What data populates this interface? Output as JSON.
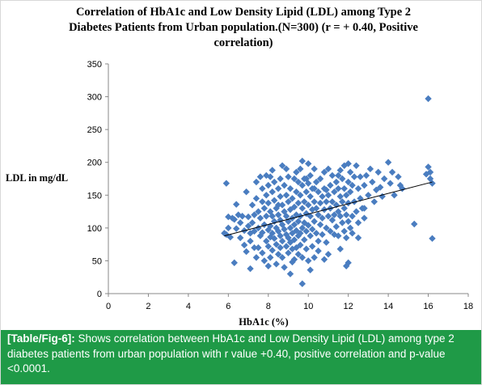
{
  "chart_data": {
    "type": "scatter",
    "title_lines": [
      "Correlation of HbA1c and Low Density Lipid (LDL) among Type 2",
      "Diabetes Patients from Urban population.(N=300) (r = + 0.40, Positive",
      "correlation)"
    ],
    "xlabel": "HbA1c (%)",
    "ylabel": "LDL in mg/dL",
    "xlim": [
      0,
      18
    ],
    "ylim": [
      0,
      350
    ],
    "xticks": [
      "0",
      "2",
      "4",
      "6",
      "8",
      "10",
      "12",
      "14",
      "16",
      "18"
    ],
    "yticks": [
      "0",
      "50",
      "100",
      "150",
      "200",
      "250",
      "300",
      "350"
    ],
    "grid": false,
    "marker": "diamond",
    "marker_color": "#4a7dc0",
    "trendline": {
      "x": [
        5.8,
        16.2
      ],
      "y": [
        88,
        170
      ],
      "color": "#000000"
    },
    "points": [
      [
        5.8,
        92
      ],
      [
        5.9,
        90
      ],
      [
        5.9,
        168
      ],
      [
        6.0,
        117
      ],
      [
        6.0,
        100
      ],
      [
        6.1,
        86
      ],
      [
        6.2,
        115
      ],
      [
        6.3,
        113
      ],
      [
        6.3,
        47
      ],
      [
        6.4,
        136
      ],
      [
        6.4,
        99
      ],
      [
        6.5,
        120
      ],
      [
        6.6,
        108
      ],
      [
        6.6,
        85
      ],
      [
        6.7,
        118
      ],
      [
        6.8,
        74
      ],
      [
        6.8,
        96
      ],
      [
        6.9,
        155
      ],
      [
        6.9,
        64
      ],
      [
        7.0,
        117
      ],
      [
        7.0,
        103
      ],
      [
        7.1,
        92
      ],
      [
        7.1,
        80
      ],
      [
        7.1,
        38
      ],
      [
        7.2,
        135
      ],
      [
        7.2,
        108
      ],
      [
        7.3,
        120
      ],
      [
        7.3,
        95
      ],
      [
        7.4,
        170
      ],
      [
        7.4,
        145
      ],
      [
        7.4,
        55
      ],
      [
        7.5,
        125
      ],
      [
        7.5,
        100
      ],
      [
        7.5,
        70
      ],
      [
        7.6,
        178
      ],
      [
        7.6,
        115
      ],
      [
        7.6,
        88
      ],
      [
        7.7,
        160
      ],
      [
        7.7,
        140
      ],
      [
        7.7,
        93
      ],
      [
        7.7,
        62
      ],
      [
        7.8,
        130
      ],
      [
        7.8,
        105
      ],
      [
        7.8,
        50
      ],
      [
        7.9,
        180
      ],
      [
        7.9,
        150
      ],
      [
        7.9,
        118
      ],
      [
        7.9,
        80
      ],
      [
        8.0,
        165
      ],
      [
        8.0,
        138
      ],
      [
        8.0,
        97
      ],
      [
        8.0,
        72
      ],
      [
        8.1,
        178
      ],
      [
        8.1,
        125
      ],
      [
        8.1,
        103
      ],
      [
        8.1,
        86
      ],
      [
        8.1,
        55
      ],
      [
        8.2,
        155
      ],
      [
        8.2,
        118
      ],
      [
        8.2,
        92
      ],
      [
        8.2,
        66
      ],
      [
        8.3,
        170
      ],
      [
        8.3,
        142
      ],
      [
        8.3,
        110
      ],
      [
        8.3,
        84
      ],
      [
        8.4,
        130
      ],
      [
        8.4,
        100
      ],
      [
        8.4,
        75
      ],
      [
        8.4,
        45
      ],
      [
        8.5,
        160
      ],
      [
        8.5,
        120
      ],
      [
        8.5,
        95
      ],
      [
        8.5,
        60
      ],
      [
        8.6,
        175
      ],
      [
        8.6,
        148
      ],
      [
        8.6,
        112
      ],
      [
        8.6,
        88
      ],
      [
        8.6,
        70
      ],
      [
        8.7,
        195
      ],
      [
        8.7,
        135
      ],
      [
        8.7,
        105
      ],
      [
        8.7,
        80
      ],
      [
        8.7,
        55
      ],
      [
        8.8,
        165
      ],
      [
        8.8,
        125
      ],
      [
        8.8,
        98
      ],
      [
        8.8,
        40
      ],
      [
        8.9,
        190
      ],
      [
        8.9,
        150
      ],
      [
        8.9,
        118
      ],
      [
        8.9,
        90
      ],
      [
        8.9,
        72
      ],
      [
        9.0,
        178
      ],
      [
        9.0,
        140
      ],
      [
        9.0,
        110
      ],
      [
        9.0,
        85
      ],
      [
        9.0,
        62
      ],
      [
        9.1,
        160
      ],
      [
        9.1,
        128
      ],
      [
        9.1,
        100
      ],
      [
        9.1,
        78
      ],
      [
        9.1,
        30
      ],
      [
        9.2,
        145
      ],
      [
        9.2,
        115
      ],
      [
        9.2,
        92
      ],
      [
        9.2,
        68
      ],
      [
        9.3,
        175
      ],
      [
        9.3,
        132
      ],
      [
        9.3,
        105
      ],
      [
        9.3,
        82
      ],
      [
        9.3,
        52
      ],
      [
        9.4,
        155
      ],
      [
        9.4,
        120
      ],
      [
        9.4,
        96
      ],
      [
        9.4,
        70
      ],
      [
        9.5,
        170
      ],
      [
        9.5,
        138
      ],
      [
        9.5,
        110
      ],
      [
        9.5,
        88
      ],
      [
        9.5,
        60
      ],
      [
        9.6,
        190
      ],
      [
        9.6,
        150
      ],
      [
        9.6,
        118
      ],
      [
        9.6,
        92
      ],
      [
        9.6,
        74
      ],
      [
        9.7,
        202
      ],
      [
        9.7,
        165
      ],
      [
        9.7,
        130
      ],
      [
        9.7,
        100
      ],
      [
        9.7,
        55
      ],
      [
        9.7,
        15
      ],
      [
        9.8,
        175
      ],
      [
        9.8,
        140
      ],
      [
        9.8,
        108
      ],
      [
        9.8,
        82
      ],
      [
        9.9,
        155
      ],
      [
        9.9,
        122
      ],
      [
        9.9,
        95
      ],
      [
        9.9,
        68
      ],
      [
        10.0,
        198
      ],
      [
        10.0,
        168
      ],
      [
        10.0,
        135
      ],
      [
        10.0,
        104
      ],
      [
        10.0,
        50
      ],
      [
        10.1,
        180
      ],
      [
        10.1,
        148
      ],
      [
        10.1,
        118
      ],
      [
        10.1,
        88
      ],
      [
        10.1,
        36
      ],
      [
        10.2,
        160
      ],
      [
        10.2,
        128
      ],
      [
        10.2,
        98
      ],
      [
        10.2,
        72
      ],
      [
        10.3,
        190
      ],
      [
        10.3,
        140
      ],
      [
        10.3,
        110
      ],
      [
        10.3,
        55
      ],
      [
        10.4,
        170
      ],
      [
        10.4,
        130
      ],
      [
        10.4,
        92
      ],
      [
        10.5,
        155
      ],
      [
        10.5,
        120
      ],
      [
        10.5,
        80
      ],
      [
        10.6,
        175
      ],
      [
        10.6,
        138
      ],
      [
        10.6,
        105
      ],
      [
        10.7,
        148
      ],
      [
        10.7,
        115
      ],
      [
        10.7,
        90
      ],
      [
        10.8,
        185
      ],
      [
        10.8,
        160
      ],
      [
        10.8,
        128
      ],
      [
        10.8,
        52
      ],
      [
        10.9,
        140
      ],
      [
        10.9,
        100
      ],
      [
        10.9,
        78
      ],
      [
        11.0,
        190
      ],
      [
        11.0,
        150
      ],
      [
        11.0,
        118
      ],
      [
        11.1,
        165
      ],
      [
        11.1,
        130
      ],
      [
        11.1,
        95
      ],
      [
        11.2,
        180
      ],
      [
        11.2,
        140
      ],
      [
        11.2,
        112
      ],
      [
        11.3,
        155
      ],
      [
        11.3,
        120
      ],
      [
        11.3,
        90
      ],
      [
        11.4,
        170
      ],
      [
        11.4,
        135
      ],
      [
        11.4,
        102
      ],
      [
        11.5,
        160
      ],
      [
        11.5,
        125
      ],
      [
        11.5,
        88
      ],
      [
        11.6,
        188
      ],
      [
        11.6,
        148
      ],
      [
        11.6,
        118
      ],
      [
        11.6,
        68
      ],
      [
        11.7,
        175
      ],
      [
        11.7,
        140
      ],
      [
        11.7,
        108
      ],
      [
        11.8,
        195
      ],
      [
        11.8,
        160
      ],
      [
        11.8,
        130
      ],
      [
        11.8,
        95
      ],
      [
        11.9,
        150
      ],
      [
        11.9,
        120
      ],
      [
        11.9,
        85
      ],
      [
        11.9,
        42
      ],
      [
        12.0,
        198
      ],
      [
        12.0,
        170
      ],
      [
        12.0,
        138
      ],
      [
        12.0,
        110
      ],
      [
        12.0,
        47
      ],
      [
        12.1,
        185
      ],
      [
        12.1,
        155
      ],
      [
        12.1,
        100
      ],
      [
        12.2,
        165
      ],
      [
        12.2,
        118
      ],
      [
        12.2,
        92
      ],
      [
        12.3,
        178
      ],
      [
        12.3,
        140
      ],
      [
        12.4,
        195
      ],
      [
        12.4,
        125
      ],
      [
        12.5,
        160
      ],
      [
        12.5,
        108
      ],
      [
        12.6,
        178
      ],
      [
        12.6,
        145
      ],
      [
        12.7,
        130
      ],
      [
        12.8,
        165
      ],
      [
        12.8,
        115
      ],
      [
        12.9,
        180
      ],
      [
        13.0,
        150
      ],
      [
        13.1,
        190
      ],
      [
        13.2,
        170
      ],
      [
        13.3,
        140
      ],
      [
        13.4,
        158
      ],
      [
        13.5,
        185
      ],
      [
        13.6,
        162
      ],
      [
        13.7,
        148
      ],
      [
        13.8,
        175
      ],
      [
        14.0,
        200
      ],
      [
        14.1,
        168
      ],
      [
        14.2,
        185
      ],
      [
        14.3,
        150
      ],
      [
        14.5,
        178
      ],
      [
        14.6,
        165
      ],
      [
        14.7,
        160
      ],
      [
        15.3,
        106
      ],
      [
        15.9,
        182
      ],
      [
        16.0,
        297
      ],
      [
        16.0,
        193
      ],
      [
        16.1,
        185
      ],
      [
        16.1,
        175
      ],
      [
        16.2,
        168
      ],
      [
        16.2,
        84
      ],
      [
        9.2,
        48
      ],
      [
        8.0,
        42
      ],
      [
        10.5,
        65
      ],
      [
        11.0,
        60
      ],
      [
        7.3,
        70
      ],
      [
        12.5,
        85
      ],
      [
        8.5,
        135
      ],
      [
        9.9,
        175
      ],
      [
        10.3,
        160
      ],
      [
        11.5,
        180
      ],
      [
        12.8,
        130
      ],
      [
        9.4,
        185
      ],
      [
        8.2,
        188
      ],
      [
        10.9,
        158
      ]
    ]
  },
  "caption": {
    "label": "[Table/Fig-6]:",
    "text": " Shows correlation between HbA1c and Low Density Lipid (LDL) among type 2 diabetes patients from urban population with r value +0.40, positive correlation and p-value <0.0001."
  }
}
